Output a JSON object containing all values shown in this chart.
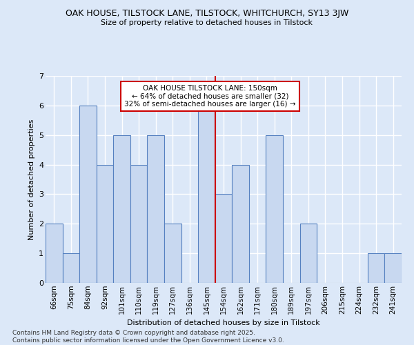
{
  "title1": "OAK HOUSE, TILSTOCK LANE, TILSTOCK, WHITCHURCH, SY13 3JW",
  "title2": "Size of property relative to detached houses in Tilstock",
  "xlabel": "Distribution of detached houses by size in Tilstock",
  "ylabel": "Number of detached properties",
  "categories": [
    "66sqm",
    "75sqm",
    "84sqm",
    "92sqm",
    "101sqm",
    "110sqm",
    "119sqm",
    "127sqm",
    "136sqm",
    "145sqm",
    "154sqm",
    "162sqm",
    "171sqm",
    "180sqm",
    "189sqm",
    "197sqm",
    "206sqm",
    "215sqm",
    "224sqm",
    "232sqm",
    "241sqm"
  ],
  "values": [
    2,
    1,
    6,
    4,
    5,
    4,
    5,
    2,
    0,
    6,
    3,
    4,
    0,
    5,
    0,
    2,
    0,
    0,
    0,
    1,
    1
  ],
  "bar_color": "#c8d8f0",
  "bar_edge_color": "#5580c0",
  "annotation_label": "OAK HOUSE TILSTOCK LANE: 150sqm",
  "annotation_line1": "← 64% of detached houses are smaller (32)",
  "annotation_line2": "32% of semi-detached houses are larger (16) →",
  "annotation_box_color": "#ffffff",
  "annotation_box_edge": "#cc0000",
  "ref_line_color": "#cc0000",
  "ylim": [
    0,
    7
  ],
  "yticks": [
    0,
    1,
    2,
    3,
    4,
    5,
    6,
    7
  ],
  "footer": "Contains HM Land Registry data © Crown copyright and database right 2025.\nContains public sector information licensed under the Open Government Licence v3.0.",
  "background_color": "#dce8f8",
  "plot_background": "#dce8f8",
  "grid_color": "#ffffff"
}
